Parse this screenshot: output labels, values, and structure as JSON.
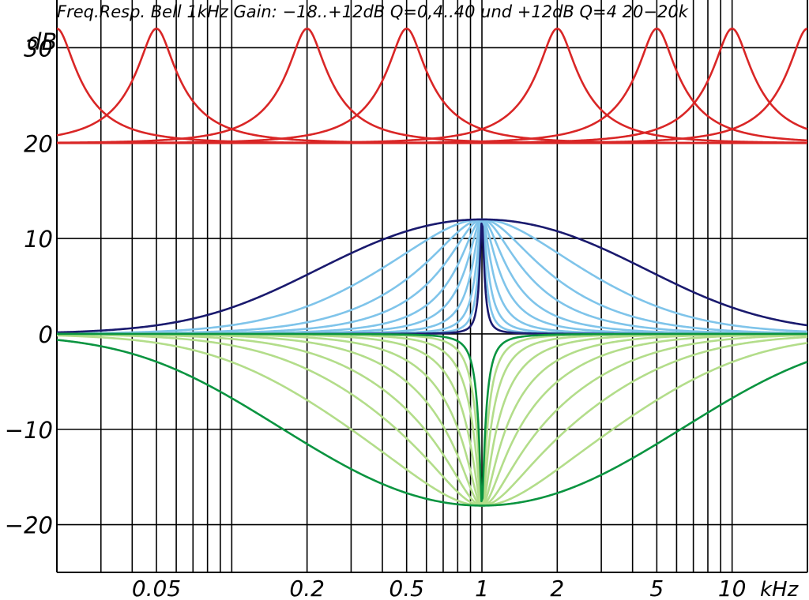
{
  "chart_data": {
    "type": "line",
    "title": "Freq.Resp. Bell 1kHz Gain: −18..+12dB Q=0,4..40   und +12dB Q=4  20−20k",
    "ylabel": "dB",
    "x_unit_label": "kHz",
    "x_scale": "log",
    "xlim_hz": [
      20,
      20000
    ],
    "ylim_db": [
      -25,
      35
    ],
    "grid": true,
    "y_ticks": [
      {
        "value": 30,
        "label": "30"
      },
      {
        "value": 20,
        "label": "20"
      },
      {
        "value": 10,
        "label": "10"
      },
      {
        "value": 0,
        "label": "0"
      },
      {
        "value": -10,
        "label": "−10"
      },
      {
        "value": -20,
        "label": "−20"
      }
    ],
    "x_ticks": [
      {
        "value_hz": 50,
        "label": "0.05"
      },
      {
        "value_hz": 200,
        "label": "0.2"
      },
      {
        "value_hz": 500,
        "label": "0.5"
      },
      {
        "value_hz": 1000,
        "label": "1"
      },
      {
        "value_hz": 2000,
        "label": "2"
      },
      {
        "value_hz": 5000,
        "label": "5"
      },
      {
        "value_hz": 10000,
        "label": "10"
      }
    ],
    "series_groups": [
      {
        "kind": "bell",
        "color": "#1a1a6e",
        "center_hz": 1000,
        "gain_db": 12,
        "q_values": [
          0.4,
          40
        ]
      },
      {
        "kind": "bell",
        "color": "#7fc4ea",
        "center_hz": 1000,
        "gain_db": 12,
        "q_values": [
          0.8,
          1.4,
          2.2,
          3.5,
          5.5,
          9,
          15,
          25
        ]
      },
      {
        "kind": "bell",
        "color": "#0a9440",
        "center_hz": 1000,
        "gain_db": -18,
        "q_values": [
          0.4,
          40
        ]
      },
      {
        "kind": "bell",
        "color": "#b3dd8a",
        "center_hz": 1000,
        "gain_db": -18,
        "q_values": [
          0.8,
          1.4,
          2.2,
          3.5,
          5.5,
          9,
          15,
          25
        ]
      },
      {
        "kind": "bell",
        "color": "#d92626",
        "gain_db": 12,
        "q": 4,
        "offset_db": 20,
        "center_hz": [
          20,
          50,
          200,
          500,
          2000,
          5000,
          10000,
          20000
        ]
      }
    ]
  }
}
